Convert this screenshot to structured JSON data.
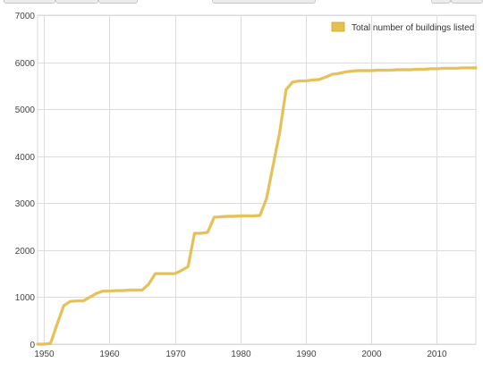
{
  "chart_data": {
    "type": "line",
    "title": "",
    "xlabel": "",
    "ylabel": "",
    "xlim": [
      1949,
      2016
    ],
    "ylim": [
      0,
      7000
    ],
    "x_ticks": [
      1950,
      1960,
      1970,
      1980,
      1990,
      2000,
      2010
    ],
    "y_ticks": [
      0,
      1000,
      2000,
      3000,
      4000,
      5000,
      6000,
      7000
    ],
    "grid": true,
    "legend_position": "top-right",
    "series": [
      {
        "name": "Total number of buildings listed",
        "color": "#e8c04e",
        "x": [
          1949,
          1950,
          1951,
          1952,
          1953,
          1954,
          1955,
          1956,
          1957,
          1958,
          1959,
          1960,
          1961,
          1962,
          1963,
          1964,
          1965,
          1966,
          1967,
          1968,
          1969,
          1970,
          1971,
          1972,
          1973,
          1974,
          1975,
          1976,
          1977,
          1978,
          1979,
          1980,
          1981,
          1982,
          1983,
          1984,
          1985,
          1986,
          1987,
          1988,
          1989,
          1990,
          1991,
          1992,
          1993,
          1994,
          1995,
          1996,
          1997,
          1998,
          1999,
          2000,
          2001,
          2002,
          2003,
          2004,
          2005,
          2006,
          2007,
          2008,
          2009,
          2010,
          2011,
          2012,
          2013,
          2014,
          2015,
          2016
        ],
        "values": [
          0,
          0,
          20,
          430,
          820,
          910,
          920,
          920,
          1000,
          1080,
          1130,
          1130,
          1140,
          1140,
          1150,
          1150,
          1150,
          1280,
          1500,
          1500,
          1500,
          1500,
          1570,
          1650,
          2360,
          2360,
          2380,
          2700,
          2710,
          2720,
          2720,
          2730,
          2730,
          2730,
          2740,
          3100,
          3800,
          4500,
          5420,
          5580,
          5600,
          5600,
          5620,
          5630,
          5680,
          5740,
          5760,
          5790,
          5810,
          5820,
          5820,
          5820,
          5830,
          5830,
          5830,
          5840,
          5840,
          5840,
          5850,
          5850,
          5860,
          5860,
          5870,
          5870,
          5870,
          5880,
          5880,
          5880
        ]
      }
    ]
  }
}
